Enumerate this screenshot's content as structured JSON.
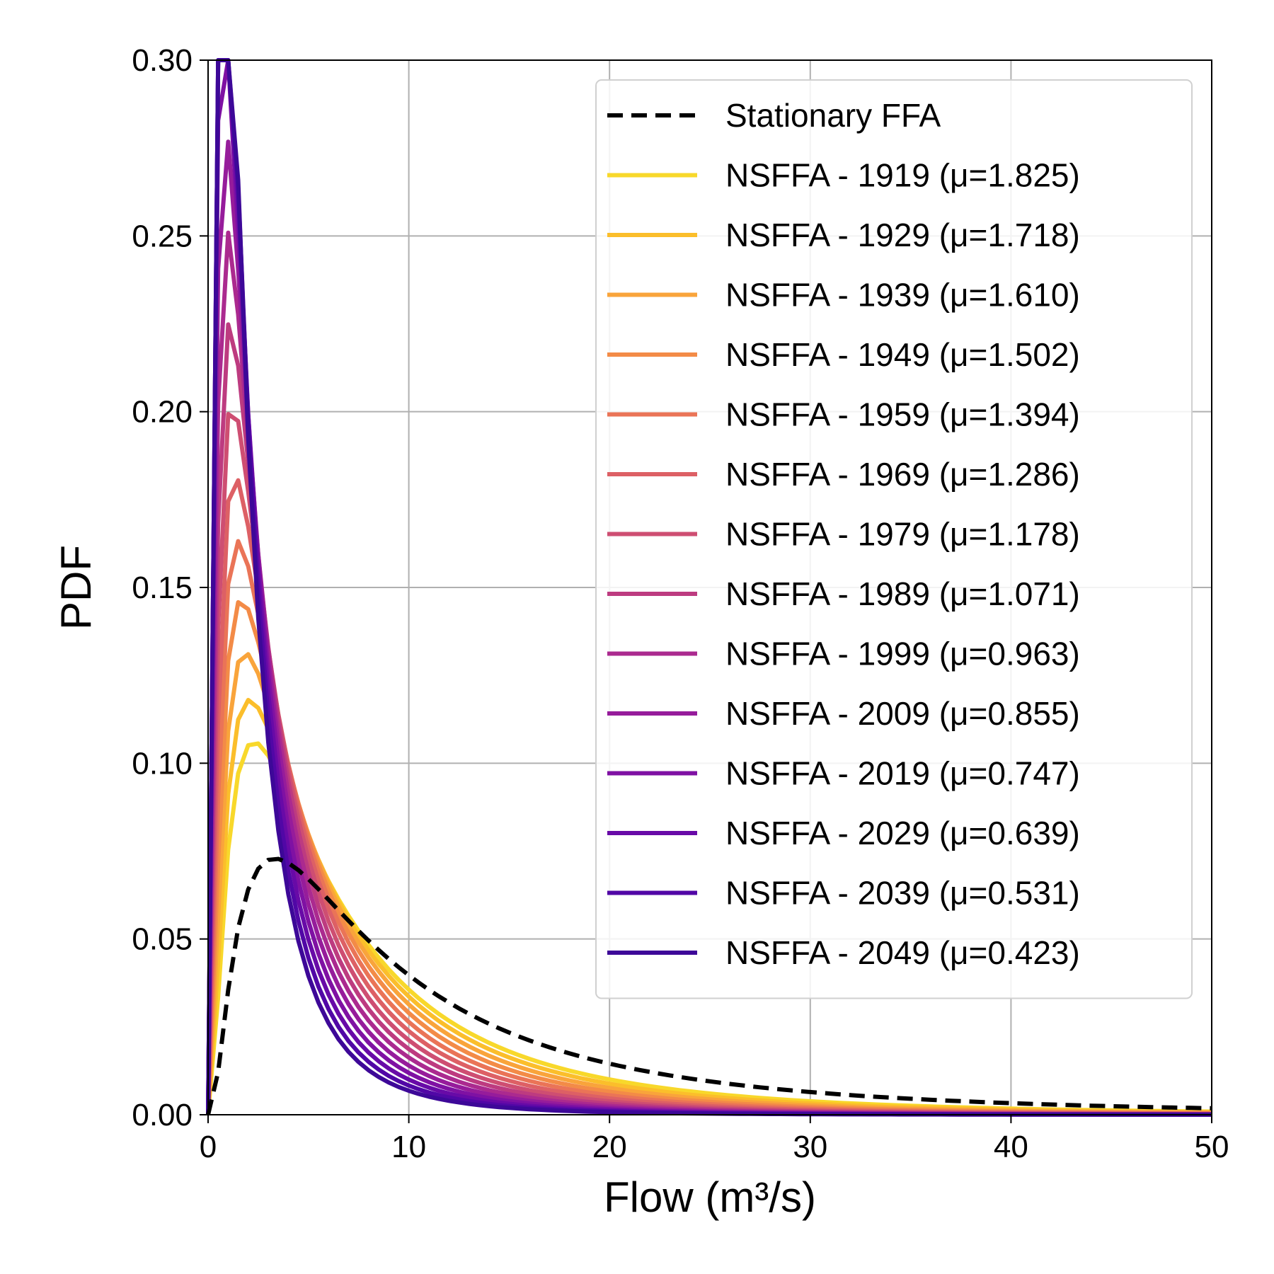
{
  "chart_data": {
    "type": "line",
    "title": "",
    "xlabel": "Flow (m³/s)",
    "ylabel": "PDF",
    "xlim": [
      0,
      50
    ],
    "ylim": [
      0,
      0.3
    ],
    "xticks": [
      "0",
      "10",
      "20",
      "30",
      "40",
      "50"
    ],
    "yticks": [
      "0.00",
      "0.05",
      "0.10",
      "0.15",
      "0.20",
      "0.25",
      "0.30"
    ],
    "grid": true,
    "legend_position": "upper-right",
    "distribution": "lognormal",
    "stationary": {
      "name": "Stationary FFA",
      "color": "#000000",
      "style": "dashed",
      "mu": 2.2,
      "sigma": 1.0
    },
    "sigma": 1.0,
    "series": [
      {
        "name": "NSFFA - 1919 (μ=1.825)",
        "mu": 1.825,
        "color": "#f8d82b"
      },
      {
        "name": "NSFFA - 1929 (μ=1.718)",
        "mu": 1.718,
        "color": "#fbbe2b"
      },
      {
        "name": "NSFFA - 1939 (μ=1.610)",
        "mu": 1.61,
        "color": "#f9a43b"
      },
      {
        "name": "NSFFA - 1949 (μ=1.502)",
        "mu": 1.502,
        "color": "#f38b47"
      },
      {
        "name": "NSFFA - 1959 (μ=1.394)",
        "mu": 1.394,
        "color": "#ea7457"
      },
      {
        "name": "NSFFA - 1969 (μ=1.286)",
        "mu": 1.286,
        "color": "#dd6065"
      },
      {
        "name": "NSFFA - 1979 (μ=1.178)",
        "mu": 1.178,
        "color": "#ce4e72"
      },
      {
        "name": "NSFFA - 1989 (μ=1.071)",
        "mu": 1.071,
        "color": "#bd3b80"
      },
      {
        "name": "NSFFA - 1999 (μ=0.963)",
        "mu": 0.963,
        "color": "#ab2a8f"
      },
      {
        "name": "NSFFA - 2009 (μ=0.855)",
        "mu": 0.855,
        "color": "#961c9b"
      },
      {
        "name": "NSFFA - 2019 (μ=0.747)",
        "mu": 0.747,
        "color": "#7f11a3"
      },
      {
        "name": "NSFFA - 2029 (μ=0.639)",
        "mu": 0.639,
        "color": "#680aa7"
      },
      {
        "name": "NSFFA - 2039 (μ=0.531)",
        "mu": 0.531,
        "color": "#5107a6"
      },
      {
        "name": "NSFFA - 2049 (μ=0.423)",
        "mu": 0.423,
        "color": "#3d0898"
      }
    ]
  }
}
